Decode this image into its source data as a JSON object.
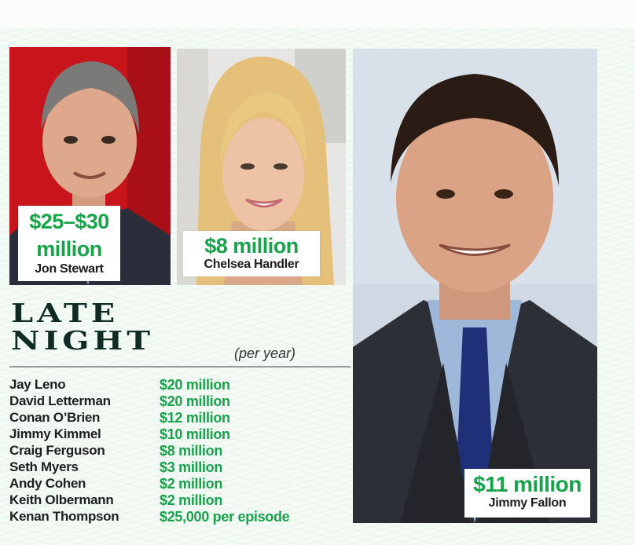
{
  "colors": {
    "money_green": "#16a34a",
    "headline_dark": "#0f2b24",
    "name_text": "#1e1e1e"
  },
  "featured": {
    "stewart": {
      "amount_line1": "$25–$30",
      "amount_line2": "million",
      "name": "Jon Stewart"
    },
    "handler": {
      "amount": "$8 million",
      "name": "Chelsea Handler"
    },
    "fallon": {
      "amount": "$11 million",
      "name": "Jimmy Fallon"
    }
  },
  "headline": {
    "line1": "LATE",
    "line2": "NIGHT",
    "subhead": "(per year)"
  },
  "salaries": [
    {
      "name": "Jay Leno",
      "value": "$20 million"
    },
    {
      "name": "David Letterman",
      "value": "$20 million"
    },
    {
      "name": "Conan O’Brien",
      "value": "$12 million"
    },
    {
      "name": "Jimmy Kimmel",
      "value": "$10 million"
    },
    {
      "name": "Craig Ferguson",
      "value": "$8 million"
    },
    {
      "name": "Seth Myers",
      "value": "$3 million"
    },
    {
      "name": "Andy Cohen",
      "value": "$2 million"
    },
    {
      "name": "Keith Olbermann",
      "value": "$2 million"
    },
    {
      "name": "Kenan Thompson",
      "value": "$25,000 per episode"
    }
  ]
}
